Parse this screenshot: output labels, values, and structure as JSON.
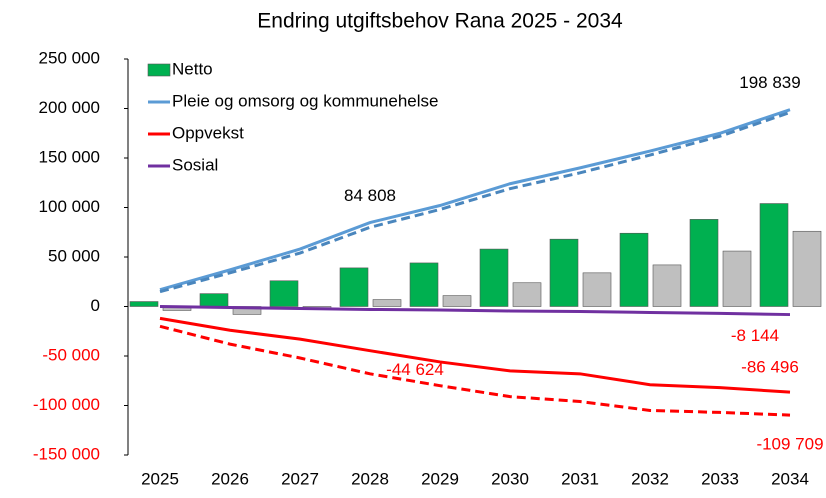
{
  "chart_data": {
    "type": "bar_line",
    "title": "Endring utgiftsbehov Rana 2025 - 2034",
    "categories": [
      "2025",
      "2026",
      "2027",
      "2028",
      "2029",
      "2030",
      "2031",
      "2032",
      "2033",
      "2034"
    ],
    "ylim": [
      -150000,
      250000
    ],
    "yticks": [
      {
        "value": 250000,
        "label": "250 000"
      },
      {
        "value": 200000,
        "label": "200 000"
      },
      {
        "value": 150000,
        "label": "150 000"
      },
      {
        "value": 100000,
        "label": "100 000"
      },
      {
        "value": 50000,
        "label": "50 000"
      },
      0,
      {
        "value": -50000,
        "label": "-50 000"
      },
      {
        "value": -100000,
        "label": "-100 000"
      },
      {
        "value": -150000,
        "label": "-150 000"
      }
    ],
    "negative_tick_color": "#ff0000",
    "grid": false,
    "legend": "top-left",
    "series": [
      {
        "name": "Netto",
        "kind": "bar",
        "color": "#00b050",
        "values": [
          5000,
          13000,
          26000,
          39000,
          44000,
          58000,
          68000,
          74000,
          88000,
          104000
        ]
      },
      {
        "kind": "bar",
        "color": "#bfbfbf",
        "values": [
          -4000,
          -8000,
          -2000,
          7000,
          11000,
          24000,
          34000,
          42000,
          56000,
          76000
        ]
      },
      {
        "name": "Pleie og omsorg og kommunehelse",
        "kind": "line",
        "color": "#5b9bd5",
        "values": [
          17000,
          37000,
          58000,
          84808,
          102000,
          124000,
          140000,
          157000,
          175000,
          198839
        ],
        "value_labels": [
          null,
          null,
          null,
          "84 808",
          null,
          null,
          null,
          null,
          null,
          "198 839"
        ],
        "label_color": "#000000"
      },
      {
        "kind": "dashed",
        "color": "#4a86bd",
        "values": [
          15000,
          34000,
          54000,
          80000,
          98000,
          119000,
          135000,
          153000,
          172000,
          196000
        ]
      },
      {
        "name": "Oppvekst",
        "kind": "line",
        "color": "#ff0000",
        "values": [
          -12000,
          -24000,
          -33000,
          -44624,
          -56000,
          -65000,
          -68000,
          -79000,
          -82000,
          -86496
        ],
        "value_labels": [
          null,
          null,
          null,
          "-44 624",
          null,
          null,
          null,
          null,
          null,
          "-86 496"
        ],
        "label_color": "#ff0000"
      },
      {
        "kind": "dashed",
        "color": "#ff0000",
        "values": [
          -20000,
          -38000,
          -52000,
          -68000,
          -80000,
          -91000,
          -96000,
          -105000,
          -107000,
          -109709
        ],
        "value_labels": [
          null,
          null,
          null,
          null,
          null,
          null,
          null,
          null,
          null,
          "-109 709"
        ],
        "label_color": "#ff0000"
      },
      {
        "name": "Sosial",
        "kind": "line",
        "color": "#7030a0",
        "values": [
          0,
          -1000,
          -2000,
          -3000,
          -3500,
          -4500,
          -5000,
          -6000,
          -7000,
          -8144
        ],
        "value_labels": [
          null,
          null,
          null,
          null,
          null,
          null,
          null,
          null,
          null,
          "-8 144"
        ],
        "label_color": "#ff0000"
      }
    ]
  }
}
